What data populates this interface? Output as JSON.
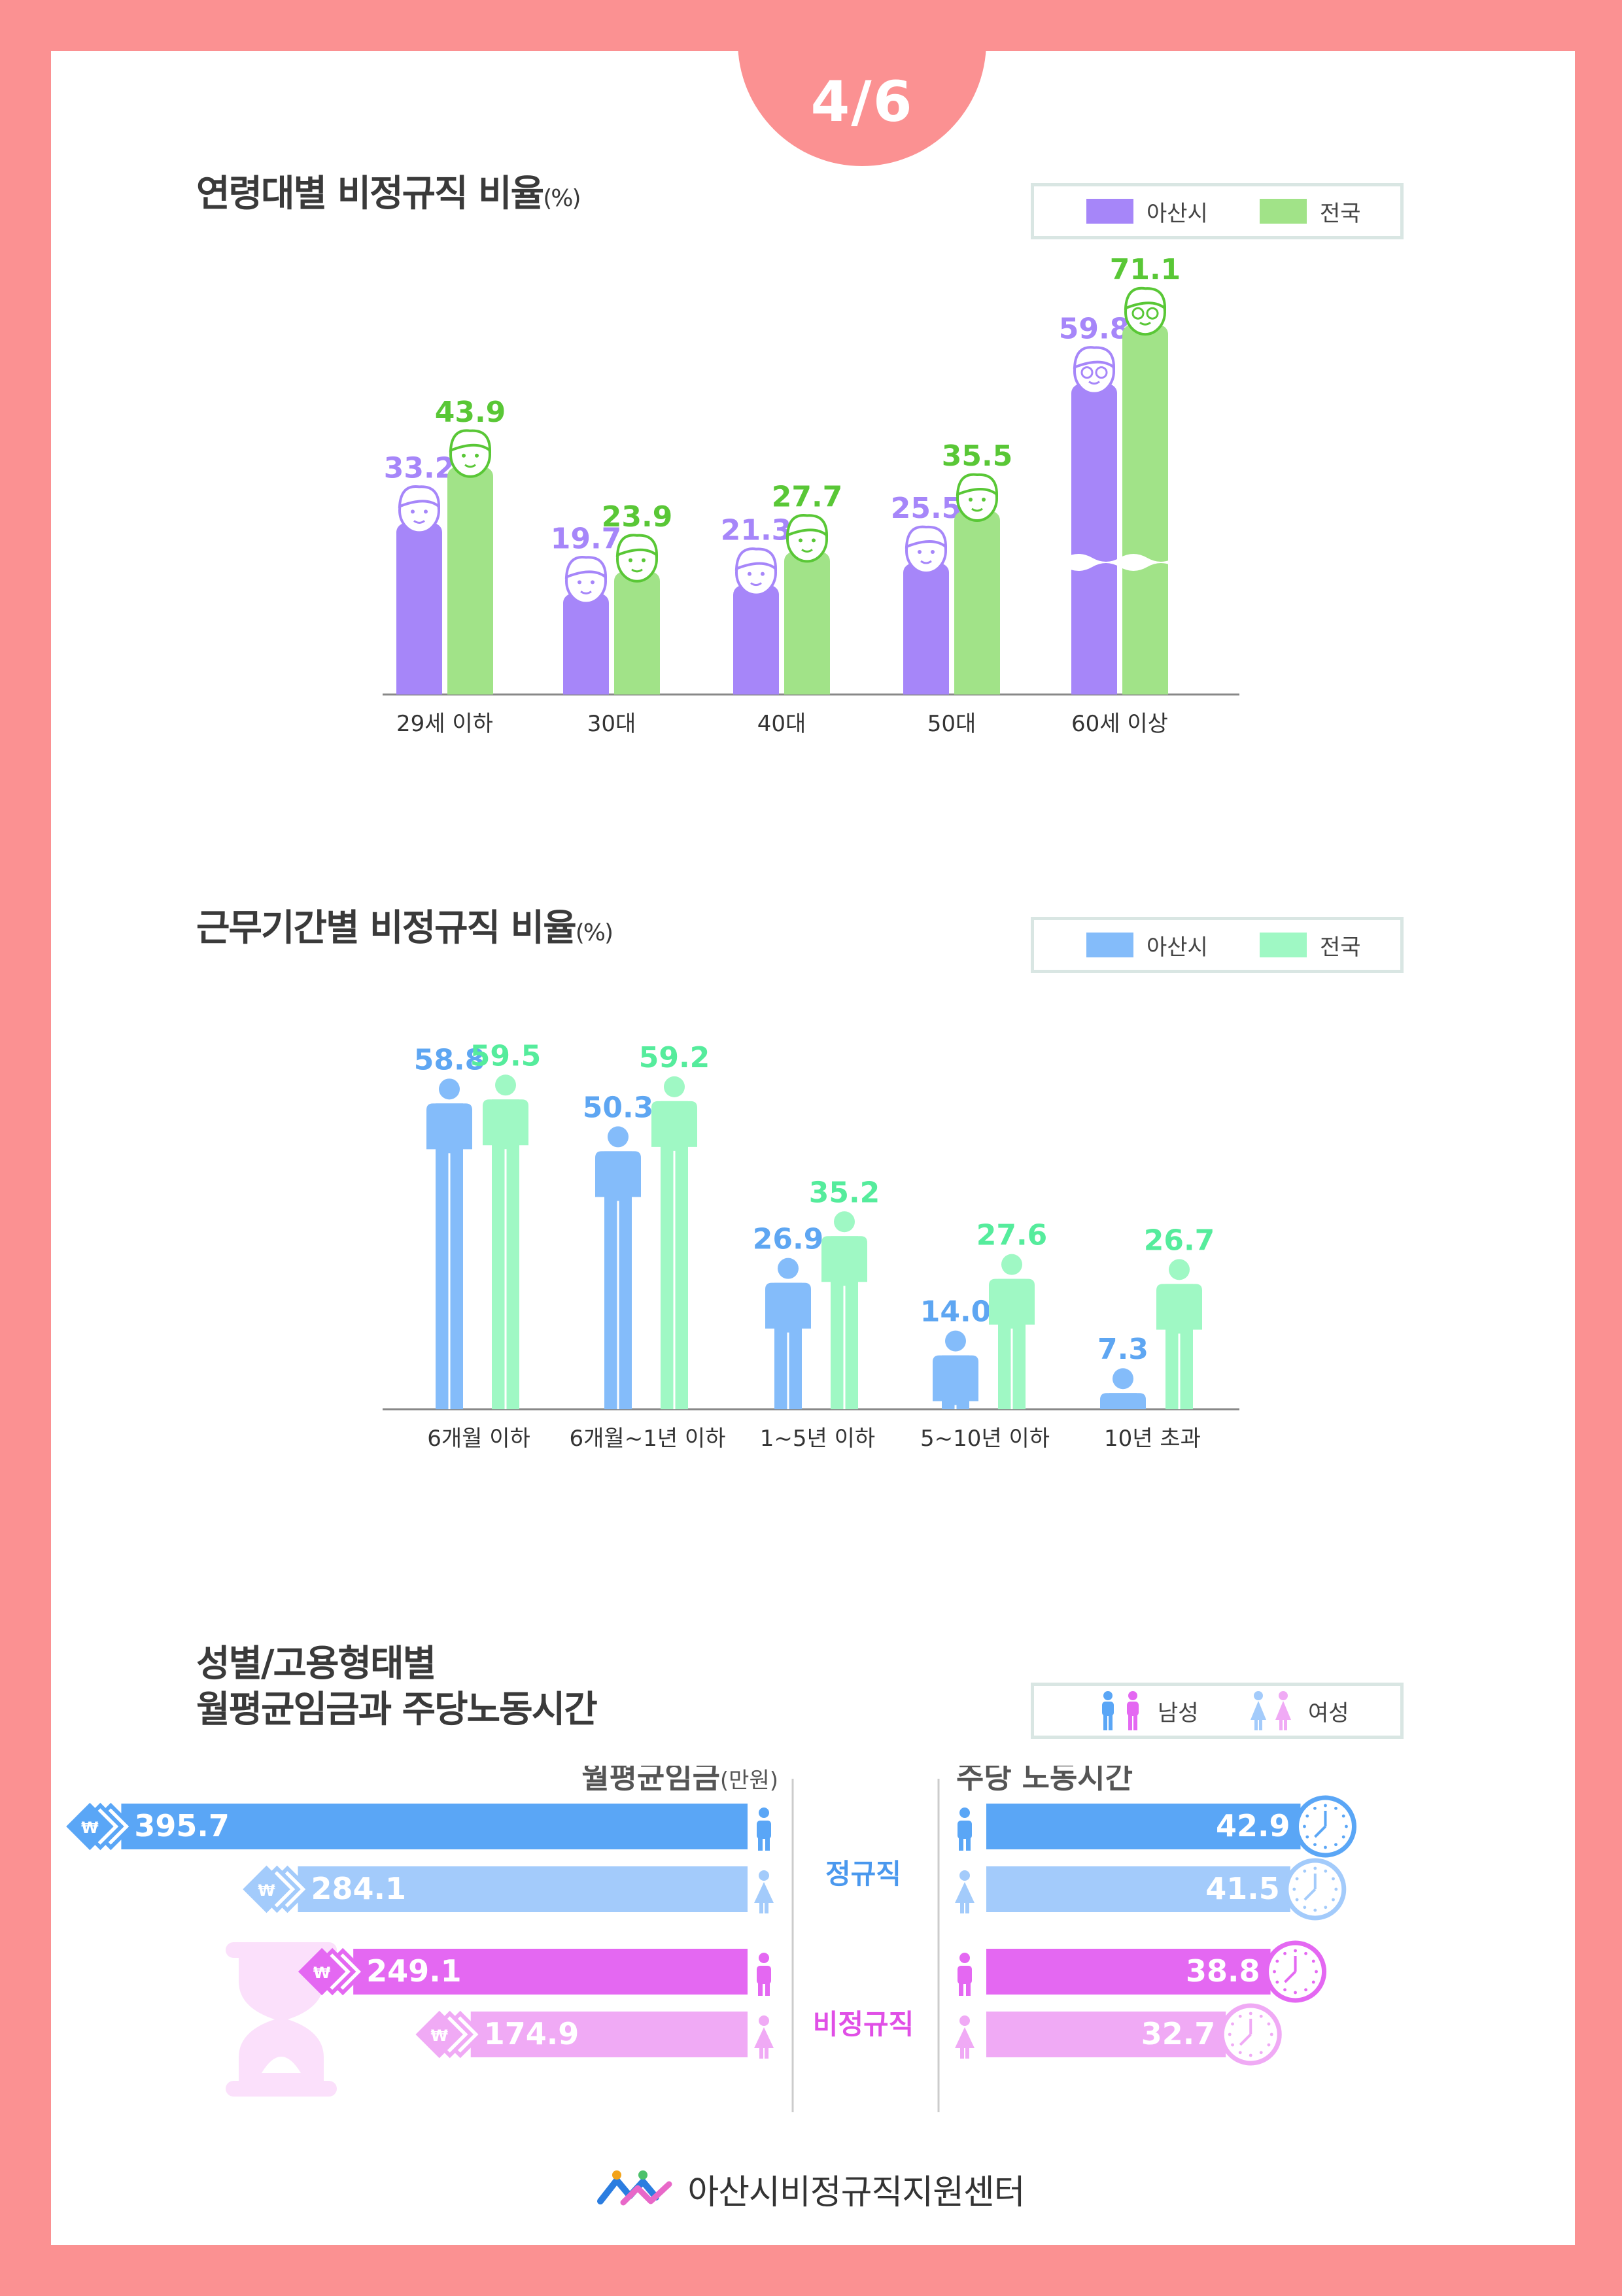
{
  "page_indicator": "4/6",
  "charts": {
    "age": {
      "title": "연령대별  비정규직 비율",
      "unit": "(%)",
      "legend": [
        {
          "label": "아산시",
          "color": "#a686f9"
        },
        {
          "label": "전국",
          "color": "#a1e388"
        }
      ]
    },
    "tenure": {
      "title": "근무기간별 비정규직 비율",
      "unit": "(%)",
      "legend": [
        {
          "label": "아산시",
          "color": "#84bcfa"
        },
        {
          "label": "전국",
          "color": "#9ff8c4"
        }
      ]
    },
    "wage": {
      "title_line1": "성별/고용형태별",
      "title_line2": "월평균임금과  주당노동시간",
      "legend": [
        {
          "label": "남성",
          "icon": "male-female-icon"
        },
        {
          "label": "여성",
          "icon": "male-female-icon"
        }
      ],
      "wage_heading": "월평균임금",
      "wage_unit": "(만원)",
      "hours_heading": "주당 노동시간",
      "group_labels": [
        "정규직",
        "비정규직"
      ]
    }
  },
  "chart_data": [
    {
      "type": "bar",
      "title": "연령대별  비정규직 비율(%)",
      "categories": [
        "29세 이하",
        "30대",
        "40대",
        "50대",
        "60세 이상"
      ],
      "series": [
        {
          "name": "아산시",
          "color": "#a686f9",
          "label_color": "#a686f9",
          "values": [
            33.2,
            19.7,
            21.3,
            25.5,
            59.8
          ]
        },
        {
          "name": "전국",
          "color": "#a1e388",
          "label_color": "#59c736",
          "values": [
            43.9,
            23.9,
            27.7,
            35.5,
            71.1
          ]
        }
      ],
      "axis_break_on_last_category": true,
      "legend_position": "top-right",
      "grid": false
    },
    {
      "type": "bar",
      "title": "근무기간별 비정규직 비율(%)",
      "categories": [
        "6개월 이하",
        "6개월~1년 이하",
        "1~5년 이하",
        "5~10년 이하",
        "10년 초과"
      ],
      "series": [
        {
          "name": "아산시",
          "color": "#84bcfa",
          "label_color": "#5ea6f2",
          "values": [
            58.8,
            50.3,
            26.9,
            14.0,
            7.3
          ]
        },
        {
          "name": "전국",
          "color": "#9ff8c4",
          "label_color": "#55ec9c",
          "values": [
            59.5,
            59.2,
            35.2,
            27.6,
            26.7
          ]
        }
      ],
      "legend_position": "top-right",
      "grid": false
    },
    {
      "type": "bar",
      "title": "월평균임금(만원)",
      "orientation": "horizontal",
      "categories": [
        "정규직 남성",
        "정규직 여성",
        "비정규직 남성",
        "비정규직 여성"
      ],
      "values": [
        395.7,
        284.1,
        249.1,
        174.9
      ],
      "colors": [
        "#5aa6f6",
        "#a3cbfb",
        "#e468f2",
        "#f0aaf5"
      ]
    },
    {
      "type": "bar",
      "title": "주당 노동시간",
      "orientation": "horizontal",
      "categories": [
        "정규직 남성",
        "정규직 여성",
        "비정규직 남성",
        "비정규직 여성"
      ],
      "values": [
        42.9,
        41.5,
        38.8,
        32.7
      ],
      "colors": [
        "#5aa6f6",
        "#a3cbfb",
        "#e468f2",
        "#f0aaf5"
      ]
    }
  ],
  "footer": {
    "org": "아산시비정규직지원센터"
  }
}
